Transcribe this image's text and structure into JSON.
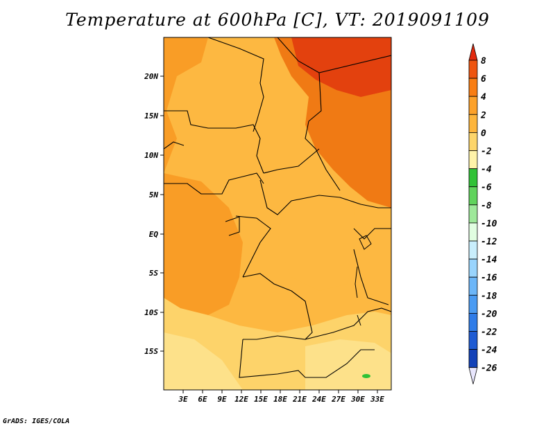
{
  "title": "Temperature at 600hPa [C], VT: 2019091109",
  "footer": "GrADS: IGES/COLA",
  "map": {
    "lat_labels": [
      "20N",
      "15N",
      "10N",
      "5N",
      "EQ",
      "5S",
      "10S",
      "15S"
    ],
    "lon_labels": [
      "3E",
      "6E",
      "9E",
      "12E",
      "15E",
      "18E",
      "21E",
      "24E",
      "27E",
      "30E",
      "33E"
    ]
  },
  "colorbar": {
    "labels": [
      "8",
      "6",
      "4",
      "2",
      "0",
      "-2",
      "-4",
      "-6",
      "-8",
      "-10",
      "-12",
      "-14",
      "-16",
      "-18",
      "-20",
      "-22",
      "-24",
      "-26"
    ],
    "colors": [
      "#e32a0f",
      "#ee5510",
      "#f87d13",
      "#fca12a",
      "#fdb53c",
      "#fdd56b",
      "#fff3a9",
      "#30c236",
      "#60d35c",
      "#9ee89a",
      "#e1fee1",
      "#c9eefc",
      "#99d4fd",
      "#6cb6f8",
      "#4a9bf2",
      "#2f7ce8",
      "#1e5bd3",
      "#1241b8",
      "#0a1e7f"
    ],
    "top_arrow_color": "#e32a0f",
    "bottom_arrow_color": "#e8e6fd"
  },
  "palette": {
    "ocean_south": "#fde18a",
    "southern_band": "#fdd36a",
    "warm_2to4": "#fdb841",
    "warm_4to6": "#f99d26",
    "hot_6to8": "#f07a14",
    "hottest": "#e3410e",
    "green_spot": "#30c236",
    "border": "#000000"
  }
}
